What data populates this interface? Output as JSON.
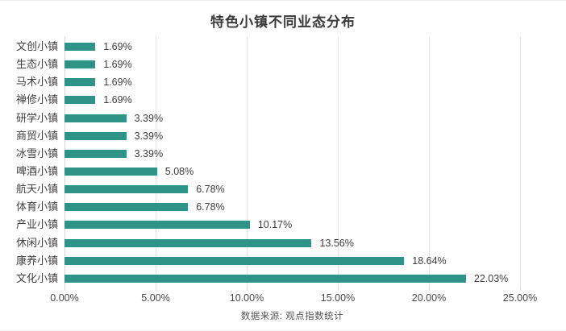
{
  "header": {
    "title": "特色小镇不同业态分布"
  },
  "footer": {
    "source": "数据来源: 观点指数统计"
  },
  "chart_data": {
    "type": "bar",
    "orientation": "horizontal",
    "title": "特色小镇不同业态分布",
    "categories": [
      "文创小镇",
      "生态小镇",
      "马术小镇",
      "禅修小镇",
      "研学小镇",
      "商贸小镇",
      "冰雪小镇",
      "啤酒小镇",
      "航天小镇",
      "体育小镇",
      "产业小镇",
      "休闲小镇",
      "康养小镇",
      "文化小镇"
    ],
    "values": [
      1.69,
      1.69,
      1.69,
      1.69,
      3.39,
      3.39,
      3.39,
      5.08,
      6.78,
      6.78,
      10.17,
      13.56,
      18.64,
      22.03
    ],
    "value_labels": [
      "1.69%",
      "1.69%",
      "1.69%",
      "1.69%",
      "3.39%",
      "3.39%",
      "3.39%",
      "5.08%",
      "6.78%",
      "6.78%",
      "10.17%",
      "13.56%",
      "18.64%",
      "22.03%"
    ],
    "x_ticks": [
      "0.00%",
      "5.00%",
      "10.00%",
      "15.00%",
      "20.00%",
      "25.00%"
    ],
    "xlim": [
      0,
      25
    ],
    "grid": true,
    "legend": "none",
    "bar_color": "#2e9487",
    "source": "数据来源: 观点指数统计"
  }
}
